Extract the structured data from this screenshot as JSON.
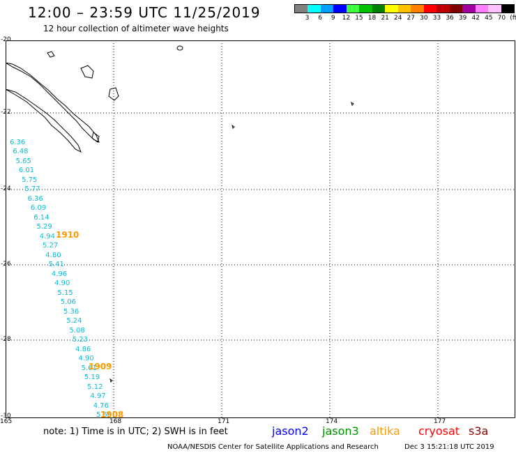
{
  "header": {
    "title": "12:00 – 23:59 UTC 11/25/2019",
    "subtitle": "12 hour collection of altimeter wave heights"
  },
  "colorbar": {
    "colors": [
      "#808080",
      "#00ffff",
      "#00a0ff",
      "#0000ff",
      "#40ff40",
      "#00c000",
      "#008000",
      "#ffff00",
      "#ffc000",
      "#ff8000",
      "#ff0000",
      "#c00000",
      "#800000",
      "#a000a0",
      "#ff80ff",
      "#ffc0ff",
      "#000000"
    ],
    "labels": [
      "3",
      "6",
      "9",
      "12",
      "15",
      "18",
      "21",
      "24",
      "27",
      "30",
      "33",
      "36",
      "39",
      "42",
      "45",
      "70",
      "(ft)"
    ]
  },
  "map": {
    "lat_labels": [
      "-20",
      "-22",
      "-24",
      "-26",
      "-28",
      "-30"
    ],
    "lon_labels": [
      "165",
      "168",
      "171",
      "174",
      "177"
    ]
  },
  "track": {
    "swh_values": [
      "6.36",
      "6.48",
      "5.65",
      "6.01",
      "5.75",
      "5.77",
      "6.36",
      "6.09",
      "6.14",
      "5.29",
      "4.94",
      "5.27",
      "4.80",
      "5.41",
      "4.96",
      "4.90",
      "5.15",
      "5.06",
      "5.36",
      "5.24",
      "5.08",
      "5.23",
      "4.86",
      "4.90",
      "5.61",
      "5.19",
      "5.12",
      "4.97",
      "4.76",
      "5.56"
    ],
    "pass_times": [
      "1910",
      "1909",
      "1908"
    ]
  },
  "footer": {
    "note": "note: 1) Time is in UTC; 2) SWH is in feet",
    "satellites": [
      {
        "name": "jason2",
        "color": "#0000ff"
      },
      {
        "name": "jason3",
        "color": "#009000"
      },
      {
        "name": "altika",
        "color": "#ff9900"
      },
      {
        "name": "cryosat",
        "color": "#ff0000"
      },
      {
        "name": "s3a",
        "color": "#8b0000"
      }
    ],
    "org": "NOAA/NESDIS Center for Satellite Applications and Research",
    "date": "Dec  3 15:21:18 UTC 2019"
  }
}
